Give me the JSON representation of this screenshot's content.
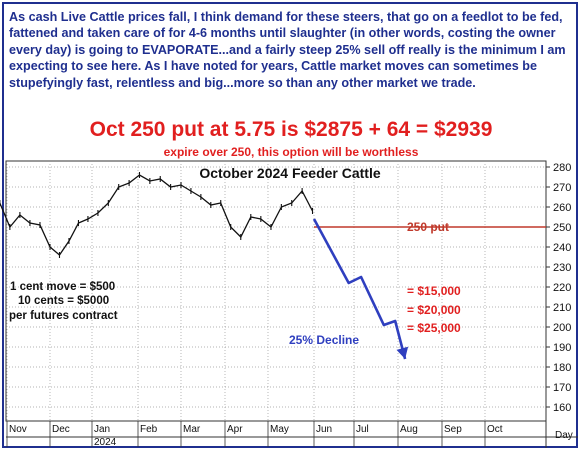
{
  "commentary": "As cash Live Cattle prices fall, I think demand for these steers, that go on a feedlot to be fed, fattened and taken care of for 4-6 months until slaughter (in other words, costing the owner every day) is going to EVAPORATE...and a fairly steep 25% sell off really is the minimum I am expecting to see here. As I have noted for years, Cattle market moves can sometimes be stupefyingly fast, relentless and big...more so than any other market we trade.",
  "headline": "Oct 250 put at 5.75 is $2875 + 64 = $2939",
  "subline": "expire over 250, this option will be worthless",
  "colors": {
    "text_blue": "#1f2f8f",
    "headline_red": "#e11f1f",
    "price": "#111111",
    "put_line": "#c0392b",
    "projection": "#2f3fbf",
    "grid": "#9a9a9a"
  },
  "chart_data": {
    "type": "line",
    "title": "October 2024 Feeder Cattle",
    "y_axis_labels": [
      "280",
      "270",
      "260",
      "250",
      "240",
      "230",
      "220",
      "210",
      "200",
      "190",
      "180",
      "170",
      "160"
    ],
    "ylim": [
      153,
      283
    ],
    "x_axis_labels": [
      "Nov",
      "Dec",
      "Jan",
      "Feb",
      "Mar",
      "Apr",
      "May",
      "Jun",
      "Jul",
      "Aug",
      "Sep",
      "Oct"
    ],
    "x_year_label": "2024",
    "x_unit_label": "Day",
    "grid": true,
    "price_series": {
      "name": "",
      "x": [
        "2023-10-27",
        "2023-11-03",
        "2023-11-10",
        "2023-11-17",
        "2023-11-24",
        "2023-12-01",
        "2023-12-08",
        "2023-12-15",
        "2023-12-22",
        "2023-12-29",
        "2024-01-05",
        "2024-01-12",
        "2024-01-19",
        "2024-01-26",
        "2024-02-02",
        "2024-02-09",
        "2024-02-16",
        "2024-02-23",
        "2024-03-01",
        "2024-03-08",
        "2024-03-15",
        "2024-03-22",
        "2024-03-29",
        "2024-04-05",
        "2024-04-12",
        "2024-04-19",
        "2024-04-26",
        "2024-05-03",
        "2024-05-10",
        "2024-05-17",
        "2024-05-24",
        "2024-05-31"
      ],
      "y": [
        262,
        250,
        256,
        252,
        251,
        240,
        236,
        243,
        252,
        254,
        257,
        262,
        270,
        272,
        276,
        273,
        274,
        270,
        271,
        268,
        265,
        261,
        262,
        250,
        245,
        255,
        254,
        250,
        260,
        262,
        268,
        258
      ]
    },
    "put_strike": {
      "label": "250 put",
      "value": 250,
      "x_start": "2024-06-01"
    },
    "projection": {
      "label": "25% Decline",
      "x": [
        "2024-06-01",
        "2024-06-27",
        "2024-07-06",
        "2024-07-22",
        "2024-07-30",
        "2024-08-06"
      ],
      "y": [
        254,
        222,
        225,
        201,
        203,
        184
      ]
    },
    "value_annotations": [
      "= $15,000",
      "= $20,000",
      "= $25,000"
    ],
    "contract_notes": [
      "1 cent move = $500",
      "10 cents = $5000",
      "per futures contract"
    ]
  }
}
